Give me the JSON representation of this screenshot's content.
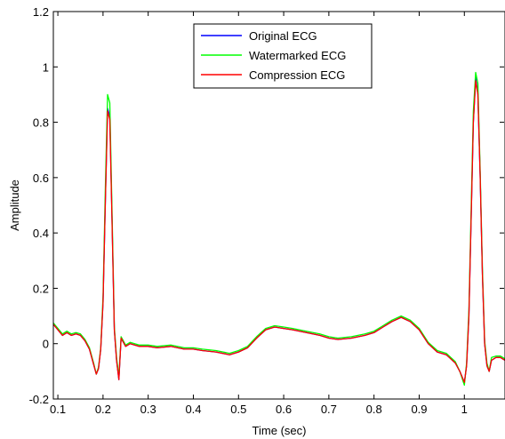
{
  "chart_data": {
    "type": "line",
    "title": "",
    "xlabel": "Time (sec)",
    "ylabel": "Amplitude",
    "xlim": [
      0.09,
      1.09
    ],
    "ylim": [
      -0.2,
      1.2
    ],
    "xticks": [
      0.1,
      0.2,
      0.3,
      0.4,
      0.5,
      0.6,
      0.7,
      0.8,
      0.9,
      1
    ],
    "yticks": [
      -0.2,
      0,
      0.2,
      0.4,
      0.6,
      0.8,
      1,
      1.2
    ],
    "xtick_labels": [
      "0.1",
      "0.2",
      "0.3",
      "0.4",
      "0.5",
      "0.6",
      "0.7",
      "0.8",
      "0.9",
      "1"
    ],
    "ytick_labels": [
      "-0.2",
      "0",
      "0.2",
      "0.4",
      "0.6",
      "0.8",
      "1",
      "1.2"
    ],
    "grid": false,
    "legend_position": "top-center",
    "series": [
      {
        "name": "Original ECG",
        "color": "#0000ff",
        "x": [
          0.09,
          0.1,
          0.11,
          0.12,
          0.13,
          0.14,
          0.15,
          0.16,
          0.17,
          0.18,
          0.185,
          0.19,
          0.195,
          0.2,
          0.205,
          0.21,
          0.215,
          0.22,
          0.225,
          0.23,
          0.235,
          0.24,
          0.25,
          0.26,
          0.28,
          0.3,
          0.32,
          0.35,
          0.38,
          0.4,
          0.42,
          0.45,
          0.48,
          0.5,
          0.52,
          0.54,
          0.56,
          0.58,
          0.6,
          0.62,
          0.65,
          0.68,
          0.7,
          0.72,
          0.75,
          0.78,
          0.8,
          0.82,
          0.84,
          0.86,
          0.88,
          0.9,
          0.92,
          0.94,
          0.96,
          0.98,
          0.99,
          1.0,
          1.005,
          1.01,
          1.015,
          1.02,
          1.025,
          1.03,
          1.035,
          1.04,
          1.045,
          1.05,
          1.055,
          1.06,
          1.07,
          1.08,
          1.09
        ],
        "y": [
          0.07,
          0.05,
          0.03,
          0.04,
          0.03,
          0.035,
          0.03,
          0.01,
          -0.02,
          -0.08,
          -0.11,
          -0.09,
          -0.02,
          0.15,
          0.5,
          0.85,
          0.82,
          0.45,
          0.05,
          -0.06,
          -0.13,
          0.02,
          -0.01,
          0.0,
          -0.01,
          -0.01,
          -0.015,
          -0.01,
          -0.02,
          -0.02,
          -0.025,
          -0.03,
          -0.04,
          -0.03,
          -0.015,
          0.02,
          0.05,
          0.06,
          0.055,
          0.05,
          0.04,
          0.03,
          0.02,
          0.015,
          0.02,
          0.03,
          0.04,
          0.06,
          0.08,
          0.095,
          0.08,
          0.05,
          0.0,
          -0.03,
          -0.04,
          -0.07,
          -0.1,
          -0.14,
          -0.08,
          0.1,
          0.45,
          0.8,
          0.96,
          0.9,
          0.6,
          0.25,
          0.0,
          -0.08,
          -0.1,
          -0.06,
          -0.05,
          -0.05,
          -0.06
        ]
      },
      {
        "name": "Watermarked ECG",
        "color": "#00ff00",
        "x": [
          0.09,
          0.1,
          0.11,
          0.12,
          0.13,
          0.14,
          0.15,
          0.16,
          0.17,
          0.18,
          0.185,
          0.19,
          0.195,
          0.2,
          0.205,
          0.21,
          0.215,
          0.22,
          0.225,
          0.23,
          0.235,
          0.24,
          0.25,
          0.26,
          0.28,
          0.3,
          0.32,
          0.35,
          0.38,
          0.4,
          0.42,
          0.45,
          0.48,
          0.5,
          0.52,
          0.54,
          0.56,
          0.58,
          0.6,
          0.62,
          0.65,
          0.68,
          0.7,
          0.72,
          0.75,
          0.78,
          0.8,
          0.82,
          0.84,
          0.86,
          0.88,
          0.9,
          0.92,
          0.94,
          0.96,
          0.98,
          0.99,
          1.0,
          1.005,
          1.01,
          1.015,
          1.02,
          1.025,
          1.03,
          1.035,
          1.04,
          1.045,
          1.05,
          1.055,
          1.06,
          1.07,
          1.08,
          1.09
        ],
        "y": [
          0.075,
          0.055,
          0.035,
          0.045,
          0.035,
          0.04,
          0.035,
          0.015,
          -0.015,
          -0.075,
          -0.11,
          -0.085,
          -0.015,
          0.17,
          0.55,
          0.9,
          0.87,
          0.48,
          0.06,
          -0.05,
          -0.12,
          0.025,
          -0.005,
          0.005,
          -0.005,
          -0.005,
          -0.01,
          -0.005,
          -0.015,
          -0.015,
          -0.02,
          -0.025,
          -0.035,
          -0.025,
          -0.01,
          0.025,
          0.055,
          0.065,
          0.06,
          0.055,
          0.045,
          0.035,
          0.025,
          0.02,
          0.025,
          0.035,
          0.045,
          0.065,
          0.085,
          0.1,
          0.085,
          0.055,
          0.005,
          -0.025,
          -0.035,
          -0.065,
          -0.1,
          -0.15,
          -0.07,
          0.12,
          0.48,
          0.84,
          0.98,
          0.94,
          0.62,
          0.27,
          0.01,
          -0.07,
          -0.1,
          -0.05,
          -0.045,
          -0.045,
          -0.055
        ]
      },
      {
        "name": "Compression ECG",
        "color": "#ff0000",
        "x": [
          0.09,
          0.1,
          0.11,
          0.12,
          0.13,
          0.14,
          0.15,
          0.16,
          0.17,
          0.18,
          0.185,
          0.19,
          0.195,
          0.2,
          0.205,
          0.21,
          0.215,
          0.22,
          0.225,
          0.23,
          0.235,
          0.24,
          0.25,
          0.26,
          0.28,
          0.3,
          0.32,
          0.35,
          0.38,
          0.4,
          0.42,
          0.45,
          0.48,
          0.5,
          0.52,
          0.54,
          0.56,
          0.58,
          0.6,
          0.62,
          0.65,
          0.68,
          0.7,
          0.72,
          0.75,
          0.78,
          0.8,
          0.82,
          0.84,
          0.86,
          0.88,
          0.9,
          0.92,
          0.94,
          0.96,
          0.98,
          0.99,
          1.0,
          1.005,
          1.01,
          1.015,
          1.02,
          1.025,
          1.03,
          1.035,
          1.04,
          1.045,
          1.05,
          1.055,
          1.06,
          1.07,
          1.08,
          1.09
        ],
        "y": [
          0.07,
          0.05,
          0.03,
          0.04,
          0.03,
          0.035,
          0.03,
          0.01,
          -0.02,
          -0.08,
          -0.11,
          -0.09,
          -0.02,
          0.15,
          0.5,
          0.84,
          0.81,
          0.44,
          0.05,
          -0.06,
          -0.13,
          0.02,
          -0.01,
          0.0,
          -0.01,
          -0.01,
          -0.015,
          -0.01,
          -0.02,
          -0.02,
          -0.025,
          -0.03,
          -0.04,
          -0.03,
          -0.015,
          0.02,
          0.05,
          0.06,
          0.055,
          0.05,
          0.04,
          0.03,
          0.02,
          0.015,
          0.02,
          0.03,
          0.04,
          0.06,
          0.08,
          0.095,
          0.08,
          0.05,
          0.0,
          -0.03,
          -0.04,
          -0.07,
          -0.1,
          -0.14,
          -0.08,
          0.1,
          0.45,
          0.8,
          0.95,
          0.9,
          0.6,
          0.25,
          0.0,
          -0.08,
          -0.1,
          -0.06,
          -0.05,
          -0.05,
          -0.06
        ]
      }
    ]
  }
}
